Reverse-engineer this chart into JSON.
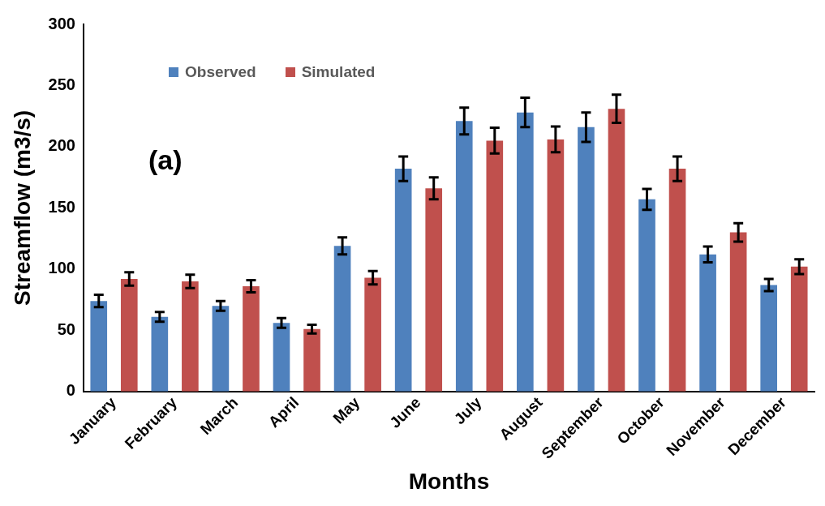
{
  "chart_data": {
    "type": "bar",
    "xlabel": "Months",
    "ylabel": "Streamflow (m3/s)",
    "categories": [
      "January",
      "February",
      "March",
      "April",
      "May",
      "June",
      "July",
      "August",
      "September",
      "October",
      "November",
      "December"
    ],
    "series": [
      {
        "name": "Observed",
        "color": "#4f81bd",
        "values": [
          74,
          61,
          70,
          56,
          119,
          182,
          221,
          228,
          216,
          157,
          112,
          87
        ],
        "errors": [
          5,
          4,
          4,
          4,
          7,
          10,
          11,
          12,
          12,
          8.5,
          6.5,
          5
        ]
      },
      {
        "name": "Simulated",
        "color": "#c0504d",
        "values": [
          92,
          90,
          86,
          51,
          93,
          166,
          205,
          206,
          231,
          182,
          130,
          102
        ],
        "errors": [
          5.5,
          5.5,
          5,
          3.5,
          5.5,
          9,
          10.5,
          10.5,
          11.5,
          10,
          7.5,
          6
        ]
      }
    ],
    "ylim": [
      0,
      300
    ],
    "yticks": [
      0,
      50,
      100,
      150,
      200,
      250,
      300
    ],
    "grid": false,
    "legend": "top left",
    "annotations": [
      "(a)"
    ]
  }
}
